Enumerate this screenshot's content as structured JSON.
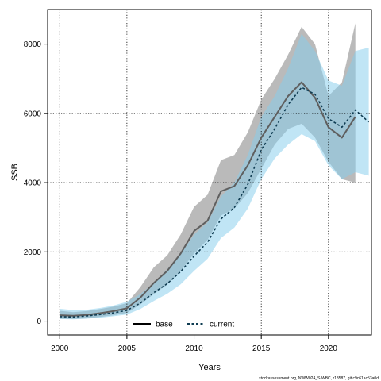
{
  "chart_data": {
    "type": "line",
    "title": "",
    "xlabel": "Years",
    "ylabel": "SSB",
    "xlim": [
      1999.1,
      2023.2
    ],
    "ylim": [
      -400,
      9000
    ],
    "x_ticks": [
      2000,
      2005,
      2010,
      2015,
      2020
    ],
    "y_ticks": [
      0,
      2000,
      4000,
      6000,
      8000
    ],
    "grid": true,
    "grid_style": "dotted",
    "legend_position": "bottom-center",
    "x": [
      2000,
      2001,
      2002,
      2003,
      2004,
      2005,
      2006,
      2007,
      2008,
      2009,
      2010,
      2011,
      2012,
      2013,
      2014,
      2015,
      2016,
      2017,
      2018,
      2019,
      2020,
      2021,
      2022,
      2023
    ],
    "series": [
      {
        "name": "base",
        "line_style": "solid",
        "line_color": "#5f5f5f",
        "band_color": "#9a9a9a",
        "values": [
          170,
          155,
          180,
          230,
          290,
          370,
          680,
          1100,
          1450,
          1950,
          2600,
          2900,
          3750,
          3900,
          4500,
          5300,
          5900,
          6500,
          6900,
          6450,
          5600,
          5300,
          5900,
          null
        ],
        "lower": [
          70,
          60,
          80,
          120,
          170,
          240,
          480,
          780,
          1050,
          1450,
          1950,
          2350,
          3050,
          3250,
          3700,
          4400,
          5100,
          5550,
          5700,
          5300,
          4600,
          4100,
          4000,
          null
        ],
        "upper": [
          300,
          260,
          290,
          350,
          420,
          520,
          980,
          1550,
          1900,
          2500,
          3300,
          3650,
          4650,
          4800,
          5450,
          6400,
          7000,
          7700,
          8500,
          8000,
          6500,
          6900,
          8600,
          null
        ]
      },
      {
        "name": "current",
        "line_style": "dashed",
        "line_color": "#0f3c52",
        "band_color": "#87ceeb",
        "values": [
          130,
          120,
          150,
          190,
          240,
          310,
          520,
          820,
          1080,
          1430,
          1880,
          2280,
          2950,
          3280,
          3950,
          4950,
          5550,
          6250,
          6750,
          6550,
          5850,
          5600,
          6100,
          5750
        ],
        "lower": [
          60,
          55,
          70,
          100,
          140,
          190,
          350,
          580,
          790,
          1060,
          1450,
          1800,
          2400,
          2700,
          3250,
          4100,
          4700,
          5100,
          5400,
          5200,
          4500,
          4100,
          4300,
          4200
        ],
        "upper": [
          360,
          320,
          330,
          380,
          450,
          560,
          780,
          1100,
          1500,
          1930,
          2500,
          2850,
          3600,
          4000,
          4800,
          5900,
          6500,
          7300,
          8300,
          7800,
          6950,
          6800,
          7800,
          7900
        ]
      }
    ],
    "credit": "stockassessment.org, NWW024_S-WBC, r18587, git:c9c61ac53a0d"
  }
}
